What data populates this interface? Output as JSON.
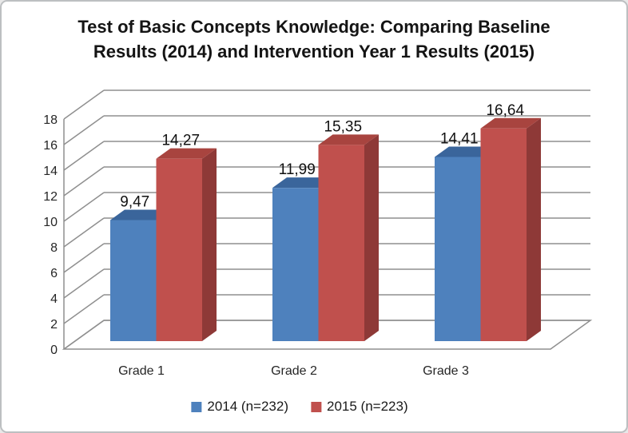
{
  "window": {
    "background": "#ffffff",
    "border_color": "#bcbfc1"
  },
  "chart_data": {
    "type": "bar",
    "projection": "3d-clustered-column",
    "title": "Test of Basic Concepts Knowledge: Comparing Baseline Results (2014) and Intervention Year 1 Results (2015)",
    "categories": [
      "Grade 1",
      "Grade 2",
      "Grade 3"
    ],
    "series": [
      {
        "name": "2014 (n=232)",
        "color": "#4E81BD",
        "color_top": "#3A659B",
        "color_side": "#2E527E",
        "values": [
          9.47,
          11.99,
          14.41
        ],
        "data_labels": [
          "9,47",
          "11,99",
          "14,41"
        ]
      },
      {
        "name": "2015 (n=223)",
        "color": "#C0504D",
        "color_top": "#A8443F",
        "color_side": "#8E3937",
        "values": [
          14.27,
          15.35,
          16.64
        ],
        "data_labels": [
          "14,27",
          "15,35",
          "16,64"
        ]
      }
    ],
    "y_axis": {
      "min": 0,
      "max": 18,
      "step": 2,
      "tick_labels": [
        "0",
        "2",
        "4",
        "6",
        "8",
        "10",
        "12",
        "14",
        "16",
        "18"
      ]
    },
    "x_axis": {
      "tick_labels": [
        "Grade 1",
        "Grade 2",
        "Grade 3"
      ]
    },
    "legend": {
      "position": "bottom",
      "entries": [
        "2014 (n=232)",
        "2015 (n=223)"
      ]
    },
    "gridlines": true,
    "gridline_color": "#8F8F8F",
    "decimal_separator": ","
  }
}
